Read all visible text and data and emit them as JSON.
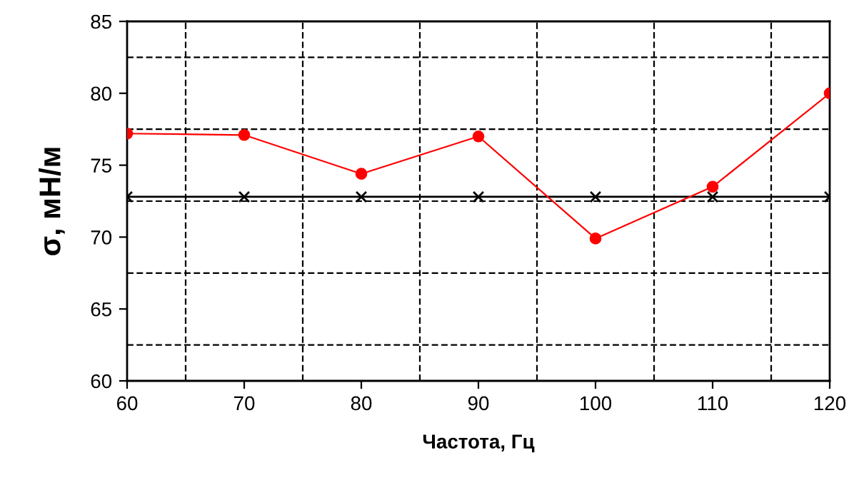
{
  "chart_data": {
    "type": "line",
    "xlabel": "Частота, Гц",
    "ylabel": "σ, мН/м",
    "x": [
      60,
      70,
      80,
      90,
      100,
      110,
      120
    ],
    "xlim": [
      60,
      120
    ],
    "ylim": [
      60,
      85
    ],
    "xticks": [
      60,
      {
        "value": 65,
        "label": null
      },
      70,
      {
        "value": 75,
        "label": null
      },
      80,
      {
        "value": 85,
        "label": null
      },
      90,
      {
        "value": 95,
        "label": null
      },
      100,
      {
        "value": 105,
        "label": null
      },
      110,
      {
        "value": 115,
        "label": null
      },
      120
    ],
    "yticks": [
      60,
      {
        "value": 62.5,
        "label": null
      },
      65,
      {
        "value": 67.5,
        "label": null
      },
      70,
      {
        "value": 72.5,
        "label": null
      },
      75,
      {
        "value": 77.5,
        "label": null
      },
      80,
      {
        "value": 82.5,
        "label": null
      },
      85
    ],
    "grid": true,
    "line_style": "solid",
    "series": [
      {
        "color": "#000000",
        "marker": "cross",
        "values": [
          72.8,
          72.8,
          72.8,
          72.8,
          72.8,
          72.8,
          72.8
        ]
      },
      {
        "color": "#ff0000",
        "marker": "circle",
        "values": [
          77.2,
          77.1,
          74.4,
          77.0,
          69.9,
          73.5,
          80.0
        ]
      }
    ]
  }
}
